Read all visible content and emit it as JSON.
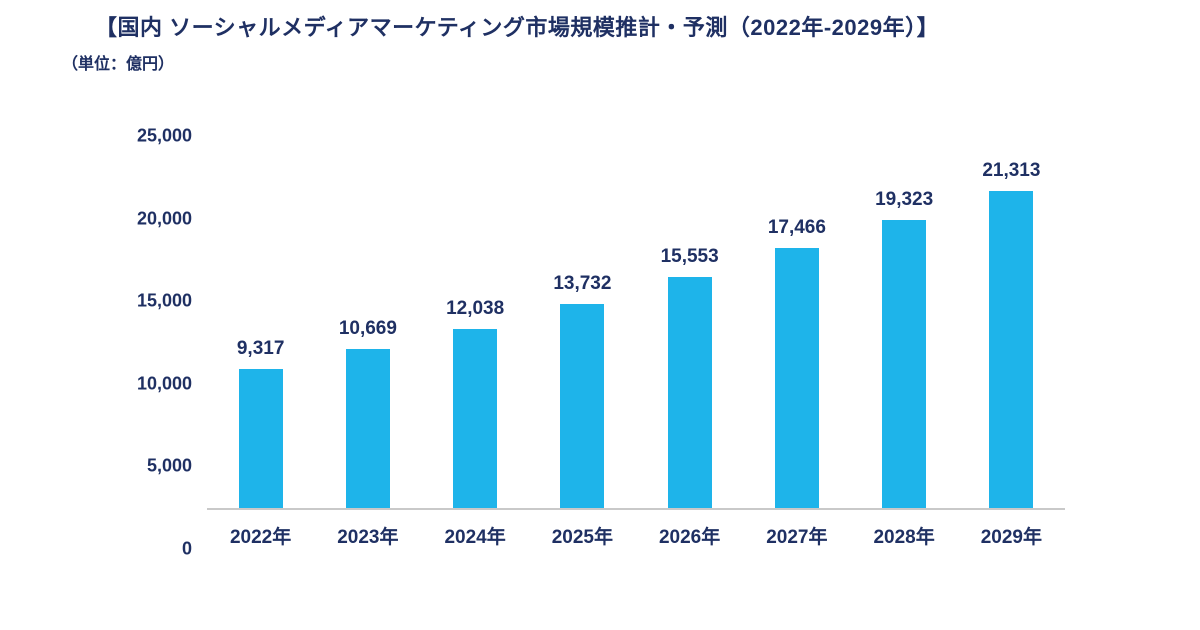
{
  "title": "【国内 ソーシャルメディアマーケティング市場規模推計・予測（2022年-2029年）】",
  "unit_label": "（単位：億円）",
  "colors": {
    "bar": "#1EB4EA",
    "text": "#1F3063",
    "axis": "#C9C9C9",
    "background": "#FFFFFF"
  },
  "chart_data": {
    "type": "bar",
    "title": "国内 ソーシャルメディアマーケティング市場規模推計・予測（2022年-2029年）",
    "unit": "億円",
    "categories": [
      "2022年",
      "2023年",
      "2024年",
      "2025年",
      "2026年",
      "2027年",
      "2028年",
      "2029年"
    ],
    "values": [
      9317,
      10669,
      12038,
      13732,
      15553,
      17466,
      19323,
      21313
    ],
    "value_labels": [
      "9,317",
      "10,669",
      "12,038",
      "13,732",
      "15,553",
      "17,466",
      "19,323",
      "21,313"
    ],
    "xlabel": "",
    "ylabel": "億円",
    "ylim": [
      0,
      25000
    ],
    "yticks": [
      {
        "value": 0,
        "label": "0"
      },
      {
        "value": 5000,
        "label": "5,000"
      },
      {
        "value": 10000,
        "label": "10,000"
      },
      {
        "value": 15000,
        "label": "15,000"
      },
      {
        "value": 20000,
        "label": "20,000"
      },
      {
        "value": 25000,
        "label": "25,000"
      }
    ],
    "grid": false,
    "legend": false
  }
}
